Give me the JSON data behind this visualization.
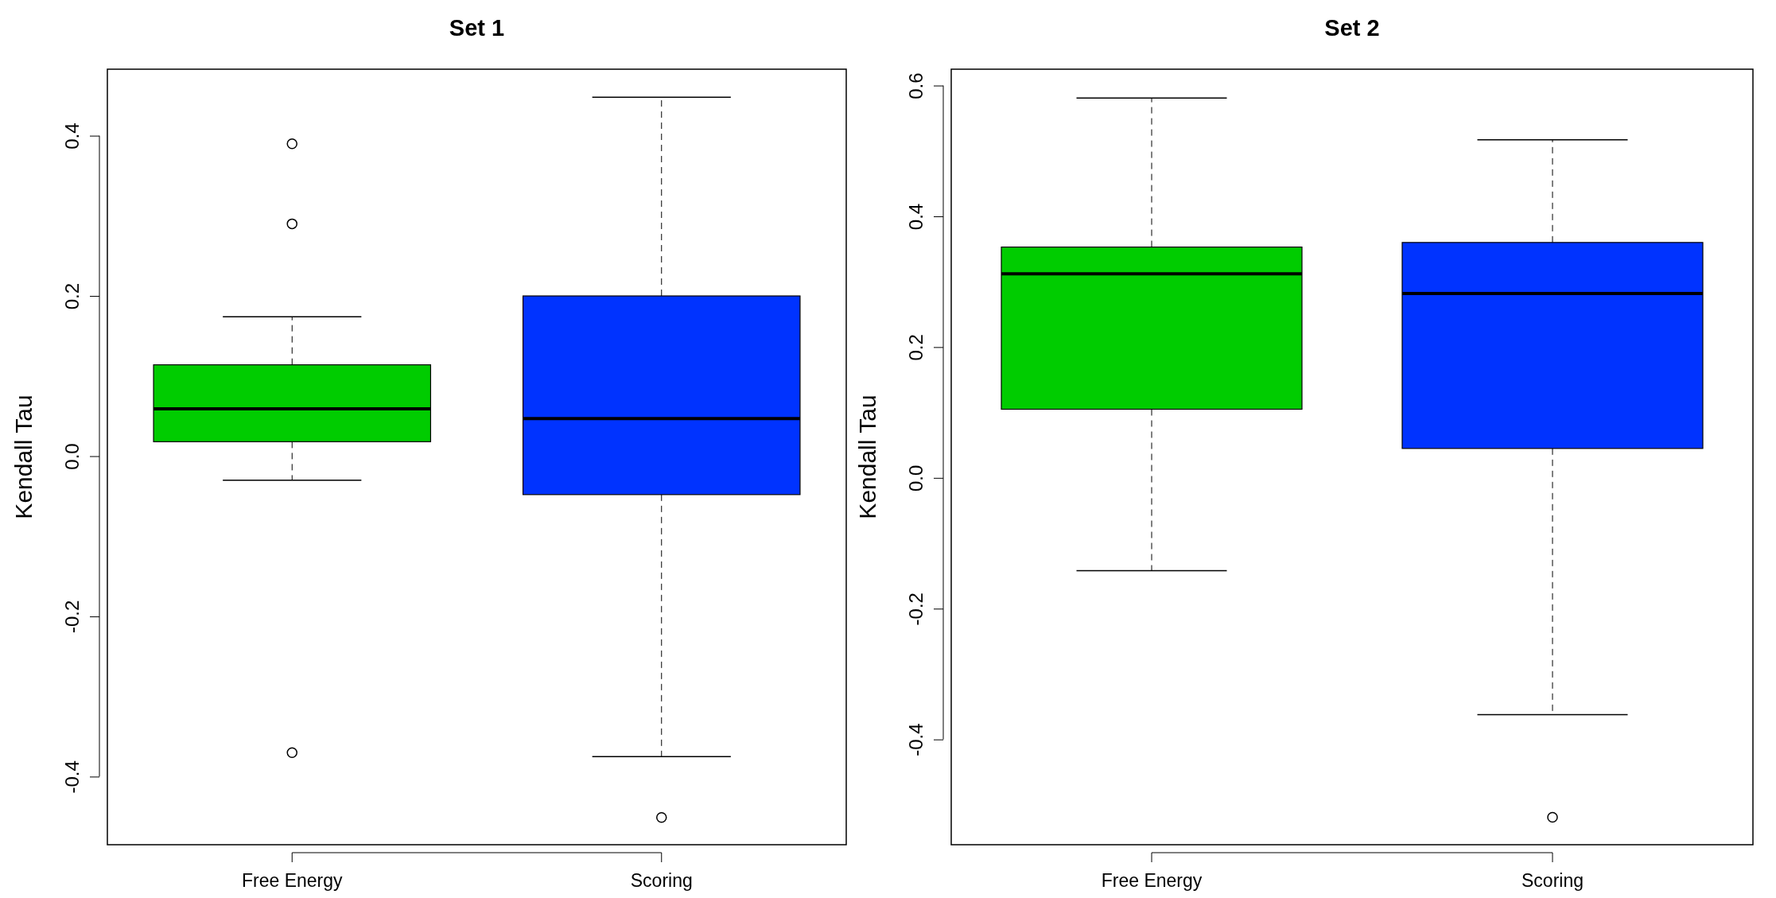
{
  "chart_data": [
    {
      "type": "box",
      "title": "Set 1",
      "ylabel": "Kendall Tau",
      "categories": [
        "Free Energy",
        "Scoring"
      ],
      "colors": [
        "#00cc00",
        "#0033ff"
      ],
      "boxes": [
        {
          "low": -0.03,
          "q1": 0.018,
          "median": 0.059,
          "q3": 0.114,
          "high": 0.174,
          "outliers": [
            0.39,
            0.29,
            -0.37
          ]
        },
        {
          "low": -0.375,
          "q1": -0.048,
          "median": 0.047,
          "q3": 0.2,
          "high": 0.448,
          "outliers": [
            -0.451
          ]
        }
      ],
      "ylim": [
        -0.485,
        0.483
      ],
      "yticks": [
        {
          "value": -0.4,
          "label": "-0.4"
        },
        {
          "value": -0.2,
          "label": "-0.2"
        },
        {
          "value": 0,
          "label": "0.0"
        },
        {
          "value": 0.2,
          "label": "0.2"
        },
        {
          "value": 0.4,
          "label": "0.4"
        }
      ],
      "grid": false,
      "legend": false
    },
    {
      "type": "box",
      "title": "Set 2",
      "ylabel": "Kendall Tau",
      "categories": [
        "Free Energy",
        "Scoring"
      ],
      "colors": [
        "#00cc00",
        "#0033ff"
      ],
      "boxes": [
        {
          "low": -0.142,
          "q1": 0.105,
          "median": 0.312,
          "q3": 0.353,
          "high": 0.581
        },
        {
          "low": -0.362,
          "q1": 0.045,
          "median": 0.282,
          "q3": 0.36,
          "high": 0.517,
          "outliers": [
            -0.519
          ]
        }
      ],
      "ylim": [
        -0.561,
        0.625
      ],
      "yticks": [
        {
          "value": -0.4,
          "label": "-0.4"
        },
        {
          "value": -0.2,
          "label": "-0.2"
        },
        {
          "value": 0,
          "label": "0.0"
        },
        {
          "value": 0.2,
          "label": "0.2"
        },
        {
          "value": 0.4,
          "label": "0.4"
        },
        {
          "value": 0.6,
          "label": "0.6"
        }
      ],
      "grid": false,
      "legend": false
    }
  ]
}
